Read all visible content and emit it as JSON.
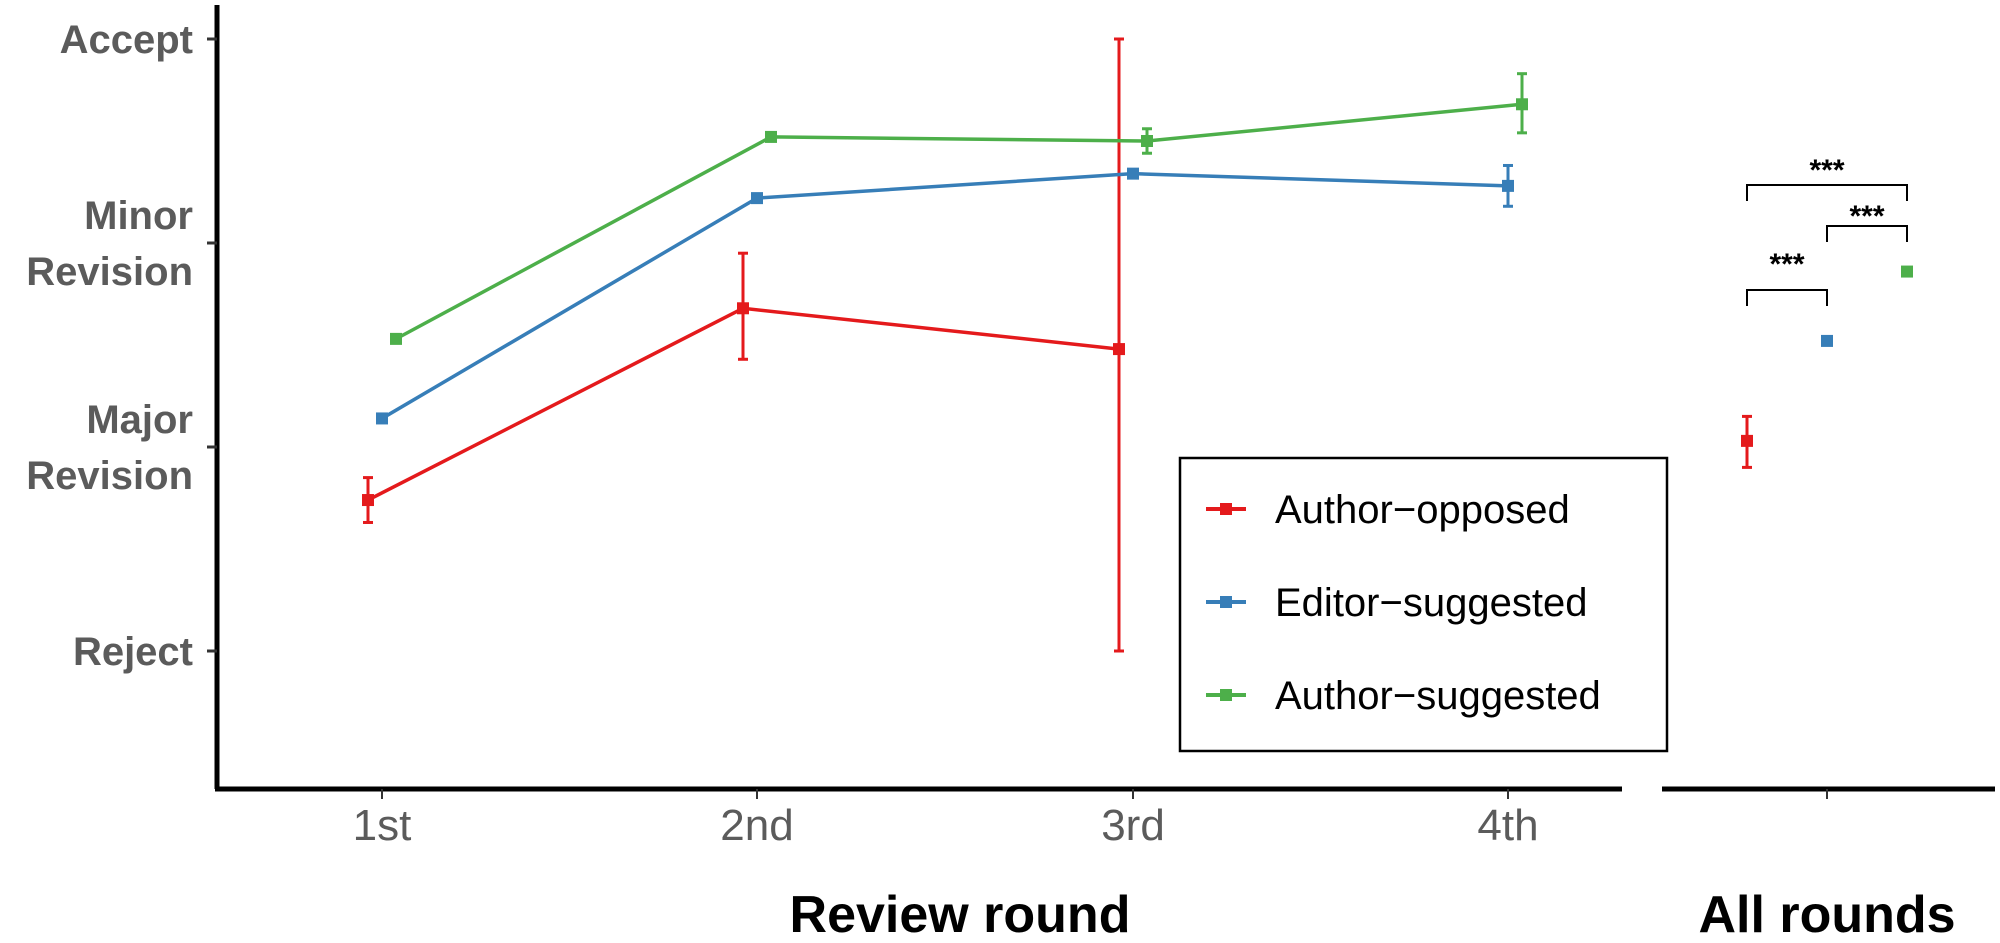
{
  "chart_data": [
    {
      "type": "line",
      "xlabel": "Review round",
      "ylabel": "",
      "categories": [
        "1st",
        "2nd",
        "3rd",
        "4th"
      ],
      "y_ticks": [
        {
          "value": 1,
          "label": "Reject"
        },
        {
          "value": 2,
          "label": "Major\nRevision"
        },
        {
          "value": 3,
          "label": "Minor\nRevision"
        },
        {
          "value": 4,
          "label": "Accept"
        }
      ],
      "ylim": [
        0.38,
        4.18
      ],
      "grid": false,
      "legend": "inside-bottom-right",
      "series": [
        {
          "name": "Author−opposed",
          "color": "#e41a1c",
          "values": [
            1.74,
            2.68,
            2.48,
            null
          ],
          "err_low": [
            1.63,
            2.43,
            1.0,
            null
          ],
          "err_high": [
            1.85,
            2.95,
            4.0,
            null
          ]
        },
        {
          "name": "Editor−suggested",
          "color": "#377eb8",
          "values": [
            2.14,
            3.22,
            3.34,
            3.28
          ],
          "err_low": [
            2.12,
            3.2,
            3.32,
            3.18
          ],
          "err_high": [
            2.16,
            3.24,
            3.36,
            3.38
          ]
        },
        {
          "name": "Author−suggested",
          "color": "#4daf4a",
          "values": [
            2.53,
            3.52,
            3.5,
            3.68
          ],
          "err_low": [
            2.51,
            3.5,
            3.44,
            3.54
          ],
          "err_high": [
            2.55,
            3.54,
            3.56,
            3.83
          ]
        }
      ]
    },
    {
      "type": "scatter",
      "xlabel": "All rounds",
      "ylim": [
        0.38,
        4.18
      ],
      "series": [
        {
          "name": "Author−opposed",
          "color": "#e41a1c",
          "value": 2.03,
          "err_low": 1.9,
          "err_high": 2.15
        },
        {
          "name": "Editor−suggested",
          "color": "#377eb8",
          "value": 2.52,
          "err_low": 2.51,
          "err_high": 2.53
        },
        {
          "name": "Author−suggested",
          "color": "#4daf4a",
          "value": 2.86,
          "err_low": 2.85,
          "err_high": 2.87
        }
      ],
      "annotations": [
        {
          "label": "***",
          "from": 0,
          "to": 1
        },
        {
          "label": "***",
          "from": 1,
          "to": 2
        },
        {
          "label": "***",
          "from": 0,
          "to": 2
        }
      ]
    }
  ]
}
